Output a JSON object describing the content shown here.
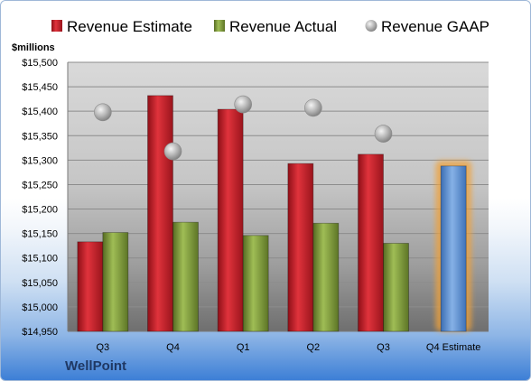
{
  "company": "WellPoint",
  "chart_data": {
    "type": "bar",
    "ylabel": "$millions",
    "ylim": [
      14950,
      15500
    ],
    "ytick_step": 50,
    "grid": true,
    "legend_position": "top",
    "categories": [
      "Q3",
      "Q4",
      "Q1",
      "Q2",
      "Q3",
      "Q4 Estimate"
    ],
    "yticks": [
      "$14,950",
      "$15,000",
      "$15,050",
      "$15,100",
      "$15,150",
      "$15,200",
      "$15,250",
      "$15,300",
      "$15,350",
      "$15,400",
      "$15,450",
      "$15,500"
    ],
    "series": [
      {
        "name": "Revenue Estimate",
        "kind": "bar",
        "color": "#c0202a",
        "values": [
          15133,
          15432,
          15404,
          15293,
          15312,
          null
        ]
      },
      {
        "name": "Revenue Actual",
        "kind": "bar",
        "color": "#7e9a3a",
        "values": [
          15152,
          15173,
          15146,
          15171,
          15130,
          null
        ]
      },
      {
        "name": "Revenue GAAP",
        "kind": "marker",
        "color": "#b8b8b8",
        "values": [
          15398,
          15318,
          15414,
          15407,
          15354,
          null
        ]
      },
      {
        "name": "Q4 Estimate",
        "kind": "bar",
        "color": "#5b8fd0",
        "highlight": "#f0a23a",
        "values": [
          null,
          null,
          null,
          null,
          null,
          15288
        ],
        "show_in_legend": false
      }
    ]
  }
}
